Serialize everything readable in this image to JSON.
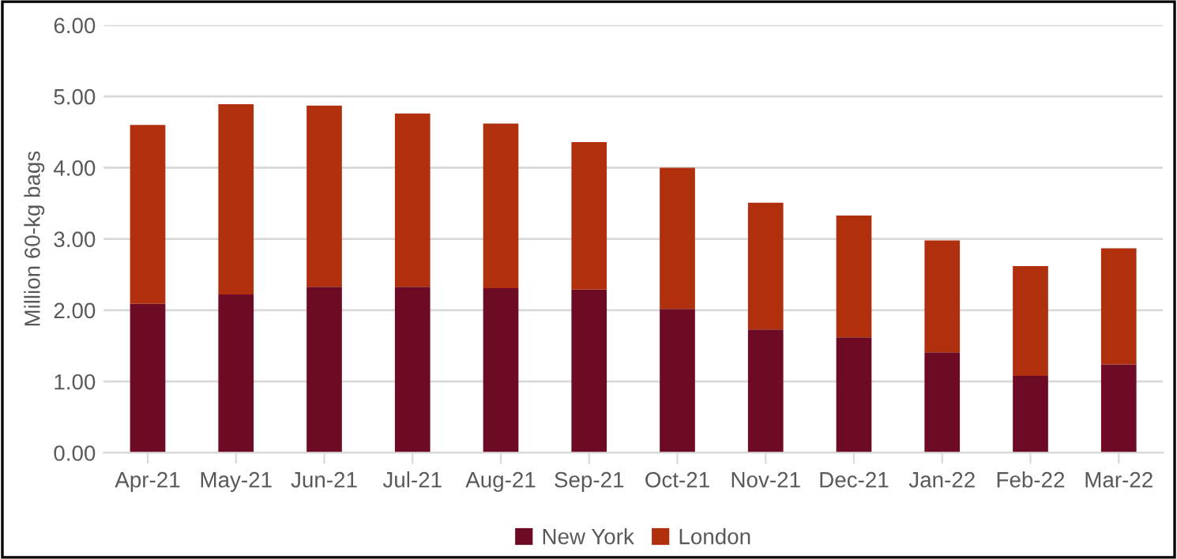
{
  "chart_data": {
    "type": "bar",
    "stacked": true,
    "ylabel": "Million 60-kg bags",
    "categories": [
      "Apr-21",
      "May-21",
      "Jun-21",
      "Jul-21",
      "Aug-21",
      "Sep-21",
      "Oct-21",
      "Nov-21",
      "Dec-21",
      "Jan-22",
      "Feb-22",
      "Mar-22"
    ],
    "series": [
      {
        "name": "New York",
        "color": "#6d0b24",
        "values": [
          2.09,
          2.22,
          2.33,
          2.33,
          2.31,
          2.29,
          2.02,
          1.73,
          1.62,
          1.41,
          1.08,
          1.24
        ]
      },
      {
        "name": "London",
        "color": "#b0300e",
        "values": [
          2.51,
          2.67,
          2.54,
          2.43,
          2.31,
          2.07,
          1.98,
          1.78,
          1.71,
          1.57,
          1.54,
          1.63
        ]
      }
    ],
    "ylim": [
      0,
      6
    ],
    "yticks": [
      {
        "value": 0,
        "label": "0.00"
      },
      {
        "value": 1,
        "label": "1.00"
      },
      {
        "value": 2,
        "label": "2.00"
      },
      {
        "value": 3,
        "label": "3.00"
      },
      {
        "value": 4,
        "label": "4.00"
      },
      {
        "value": 5,
        "label": "5.00"
      },
      {
        "value": 6,
        "label": "6.00"
      }
    ],
    "grid": "y",
    "legend": "bottom"
  }
}
